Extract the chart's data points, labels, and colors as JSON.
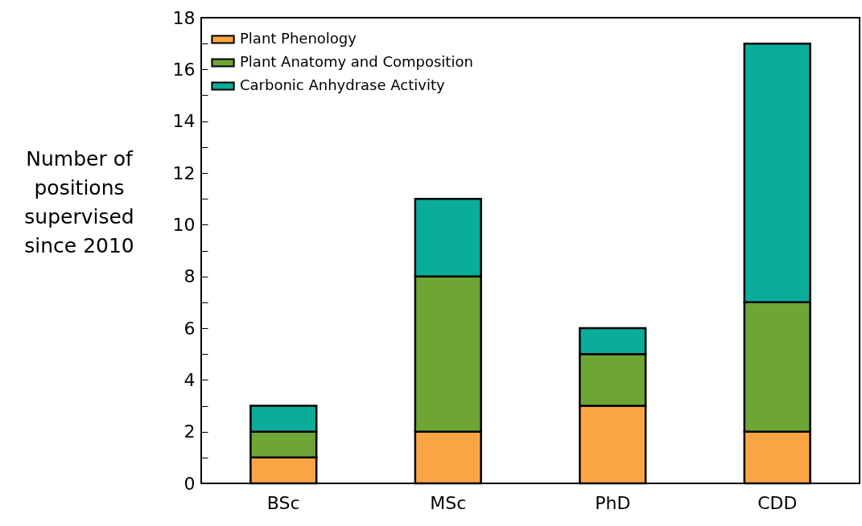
{
  "chart_data": {
    "type": "bar",
    "stacked": true,
    "ylabel": "Number of positions supervised since 2010",
    "categories": [
      "BSc",
      "MSc",
      "PhD",
      "CDD"
    ],
    "series": [
      {
        "name": "Plant Phenology",
        "color": "#f9a546",
        "values": [
          1,
          2,
          3,
          2
        ]
      },
      {
        "name": "Plant Anatomy and Composition",
        "color": "#6ea534",
        "values": [
          1,
          6,
          2,
          5
        ]
      },
      {
        "name": "Carbonic Anhydrase Activity",
        "color": "#0aad9a",
        "values": [
          1,
          3,
          1,
          10
        ]
      }
    ],
    "ylim": [
      0,
      18
    ],
    "yticks": [
      0,
      {
        "value": 1,
        "label": null
      },
      2,
      {
        "value": 3,
        "label": null
      },
      4,
      {
        "value": 5,
        "label": null
      },
      6,
      {
        "value": 7,
        "label": null
      },
      8,
      {
        "value": 9,
        "label": null
      },
      10,
      {
        "value": 11,
        "label": null
      },
      12,
      {
        "value": 13,
        "label": null
      },
      14,
      {
        "value": 15,
        "label": null
      },
      16,
      {
        "value": 17,
        "label": null
      },
      18
    ],
    "grid": false,
    "legend": "top left"
  }
}
